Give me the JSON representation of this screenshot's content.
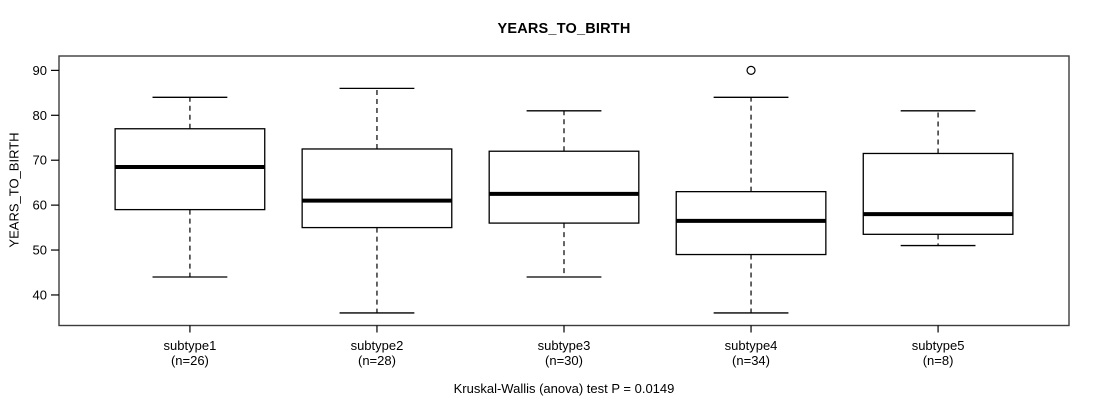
{
  "title": "YEARS_TO_BIRTH",
  "caption": "Kruskal-Wallis (anova) test P = 0.0149",
  "colors": {
    "frame": "#3c3c3c",
    "box_stroke": "#000000",
    "median": "#000000",
    "whisker": "#000000",
    "text": "#000000",
    "background": "#ffffff"
  },
  "chart_data": {
    "type": "boxplot",
    "title": "YEARS_TO_BIRTH",
    "xlabel": "",
    "ylabel": "YEARS_TO_BIRTH",
    "ylim": [
      33.2,
      93.2
    ],
    "yticks": [
      40,
      50,
      60,
      70,
      80,
      90
    ],
    "grid": false,
    "annotation": "Kruskal-Wallis (anova) test P = 0.0149",
    "groups": [
      {
        "label": "subtype1",
        "sublabel": "(n=26)",
        "n": 26,
        "whisker_low": 44,
        "q1": 59,
        "median": 68.5,
        "q3": 77,
        "whisker_high": 84,
        "outliers": []
      },
      {
        "label": "subtype2",
        "sublabel": "(n=28)",
        "n": 28,
        "whisker_low": 36,
        "q1": 55,
        "median": 61,
        "q3": 72.5,
        "whisker_high": 86,
        "outliers": []
      },
      {
        "label": "subtype3",
        "sublabel": "(n=30)",
        "n": 30,
        "whisker_low": 44,
        "q1": 56,
        "median": 62.5,
        "q3": 72,
        "whisker_high": 81,
        "outliers": []
      },
      {
        "label": "subtype4",
        "sublabel": "(n=34)",
        "n": 34,
        "whisker_low": 36,
        "q1": 49,
        "median": 56.5,
        "q3": 63,
        "whisker_high": 84,
        "outliers": [
          90
        ]
      },
      {
        "label": "subtype5",
        "sublabel": "(n=8)",
        "n": 8,
        "whisker_low": 51,
        "q1": 53.5,
        "median": 58,
        "q3": 71.5,
        "whisker_high": 81,
        "outliers": []
      }
    ]
  }
}
